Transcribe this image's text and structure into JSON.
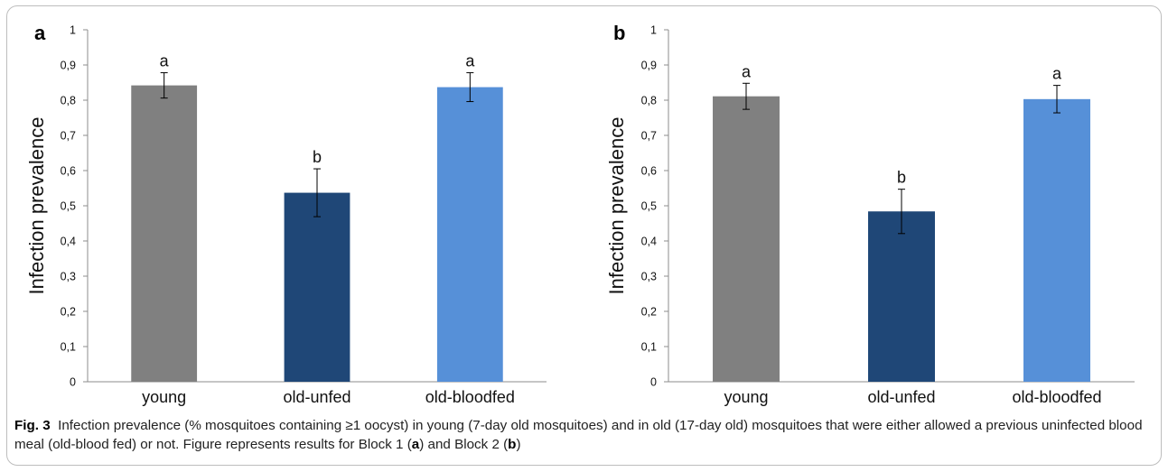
{
  "chart_data": [
    {
      "type": "bar",
      "panel_label": "a",
      "categories": [
        "young",
        "old-unfed",
        "old-bloodfed"
      ],
      "values": [
        0.842,
        0.537,
        0.837
      ],
      "errors": [
        0.036,
        0.068,
        0.041
      ],
      "significance_letters": [
        "a",
        "b",
        "a"
      ],
      "colors": [
        "#808080",
        "#1f4777",
        "#5690d8"
      ],
      "ylabel": "Infection prevalence",
      "ylim": [
        0,
        1
      ],
      "yticks": [
        "0",
        "0,1",
        "0,2",
        "0,3",
        "0,4",
        "0,5",
        "0,6",
        "0,7",
        "0,8",
        "0,9",
        "1"
      ],
      "grid": false,
      "legend": "none"
    },
    {
      "type": "bar",
      "panel_label": "b",
      "categories": [
        "young",
        "old-unfed",
        "old-bloodfed"
      ],
      "values": [
        0.811,
        0.484,
        0.803
      ],
      "errors": [
        0.037,
        0.063,
        0.039
      ],
      "significance_letters": [
        "a",
        "b",
        "a"
      ],
      "colors": [
        "#808080",
        "#1f4777",
        "#5690d8"
      ],
      "ylabel": "Infection prevalence",
      "ylim": [
        0,
        1
      ],
      "yticks": [
        "0",
        "0,1",
        "0,2",
        "0,3",
        "0,4",
        "0,5",
        "0,6",
        "0,7",
        "0,8",
        "0,9",
        "1"
      ],
      "grid": false,
      "legend": "none"
    }
  ],
  "caption": {
    "label": "Fig. 3",
    "seg1": "Infection prevalence (% mosquitoes containing ≥1 oocyst) in young (7-day old mosquitoes) and in old (17-day old) mosquitoes that were either allowed a previous uninfected blood meal (old-blood fed) or not. Figure represents results for Block 1 (",
    "ref_a": "a",
    "seg2": ") and Block 2 (",
    "ref_b": "b",
    "seg3": ")"
  }
}
